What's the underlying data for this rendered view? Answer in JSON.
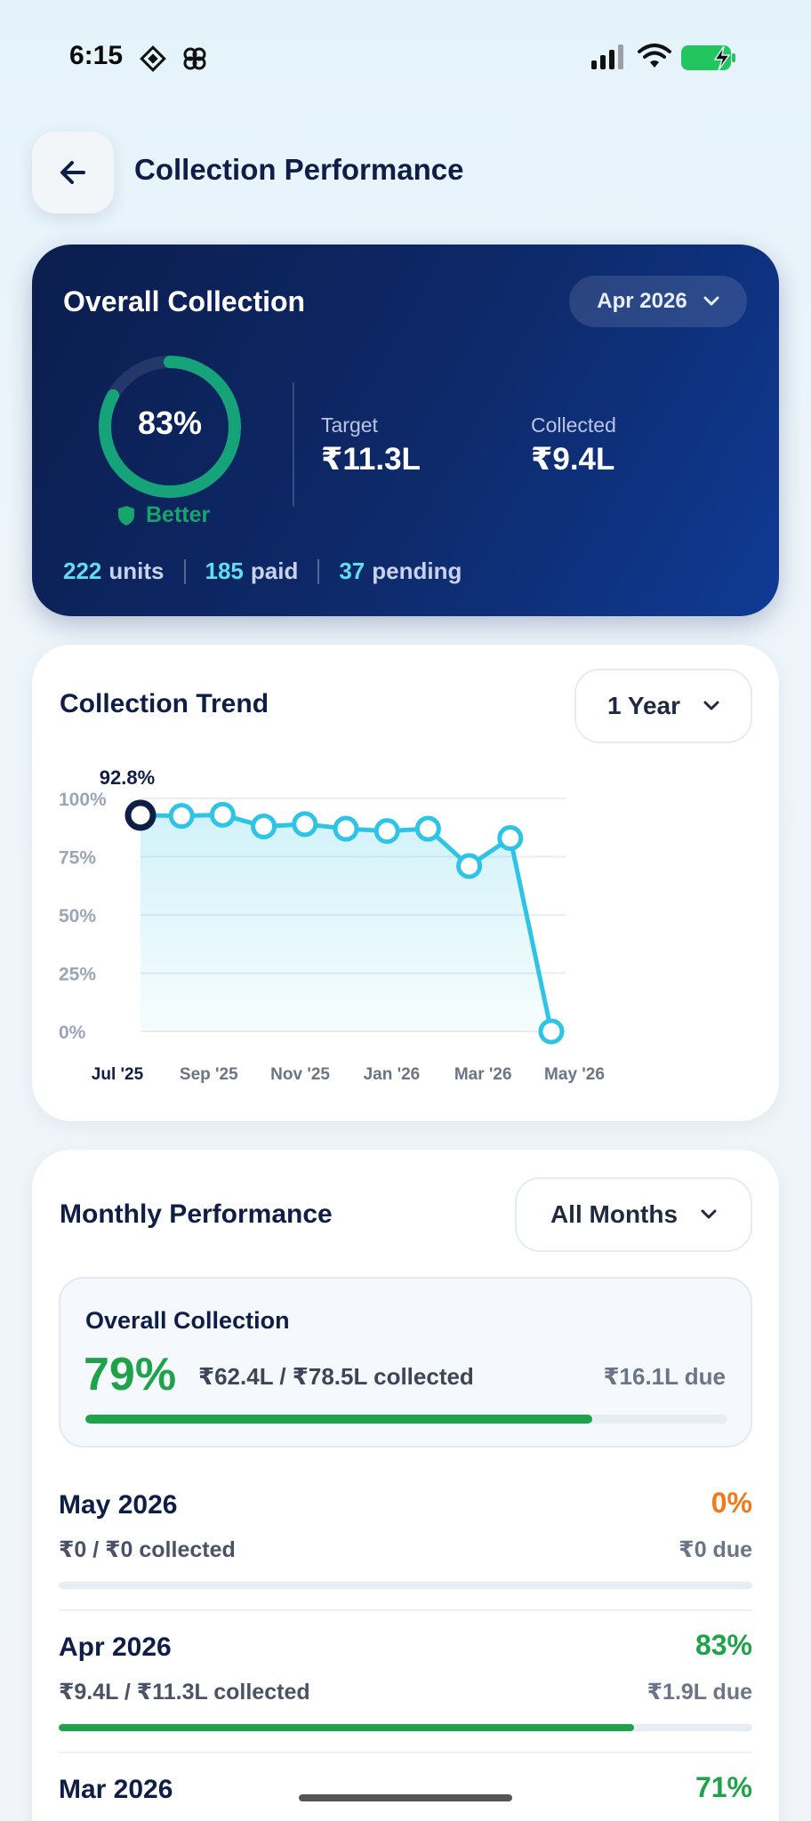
{
  "status_bar": {
    "time": "6:15",
    "icons": [
      "app-icon-diamond",
      "app-icon-flower",
      "signal-icon",
      "wifi-icon",
      "battery-charging-icon"
    ],
    "battery_color": "#22c55e"
  },
  "header": {
    "back_icon": "arrow-left-icon",
    "title": "Collection Performance"
  },
  "overall": {
    "title": "Overall Collection",
    "month_select": "Apr 2026",
    "percent": 83,
    "percent_label": "83%",
    "status": "Better",
    "target_label": "Target",
    "target_value": "₹11.3L",
    "collected_label": "Collected",
    "collected_value": "₹9.4L",
    "units_count": "222",
    "units_label": "units",
    "paid_count": "185",
    "paid_label": "paid",
    "pending_count": "37",
    "pending_label": "pending",
    "colors": {
      "ring": "#16a37a",
      "accent": "#62dcef"
    }
  },
  "trend": {
    "title": "Collection Trend",
    "range_select": "1 Year",
    "highlight_label": "92.8%"
  },
  "chart_data": {
    "type": "area",
    "title": "Collection Trend",
    "x": [
      "Jul '25",
      "Aug '25",
      "Sep '25",
      "Oct '25",
      "Nov '25",
      "Dec '25",
      "Jan '26",
      "Feb '26",
      "Mar '26",
      "Apr '26",
      "May '26"
    ],
    "x_tick_labels": [
      "Jul '25",
      "Sep '25",
      "Nov '25",
      "Jan '26",
      "Mar '26",
      "May '26"
    ],
    "series": [
      {
        "values": [
          92.8,
          92.5,
          93,
          88,
          89,
          87,
          86,
          87,
          71,
          83,
          0
        ]
      }
    ],
    "y_ticks": [
      "100%",
      "75%",
      "50%",
      "25%",
      "0%"
    ],
    "ylim": [
      0,
      100
    ],
    "grid": true,
    "line_color": "#2ec4e6"
  },
  "monthly": {
    "title": "Monthly Performance",
    "filter_select": "All Months",
    "summary": {
      "title": "Overall Collection",
      "percent_label": "79%",
      "percent": 79,
      "collected": "₹62.4L / ₹78.5L collected",
      "due": "₹16.1L due"
    },
    "rows": [
      {
        "month": "May 2026",
        "percent_label": "0%",
        "percent": 0,
        "collected": "₹0 / ₹0 collected",
        "due": "₹0 due",
        "color": "#f07a1a"
      },
      {
        "month": "Apr 2026",
        "percent_label": "83%",
        "percent": 83,
        "collected": "₹9.4L / ₹11.3L collected",
        "due": "₹1.9L due",
        "color": "#1fa34a"
      },
      {
        "month": "Mar 2026",
        "percent_label": "71%",
        "percent": 71,
        "color": "#1fa34a"
      }
    ]
  }
}
